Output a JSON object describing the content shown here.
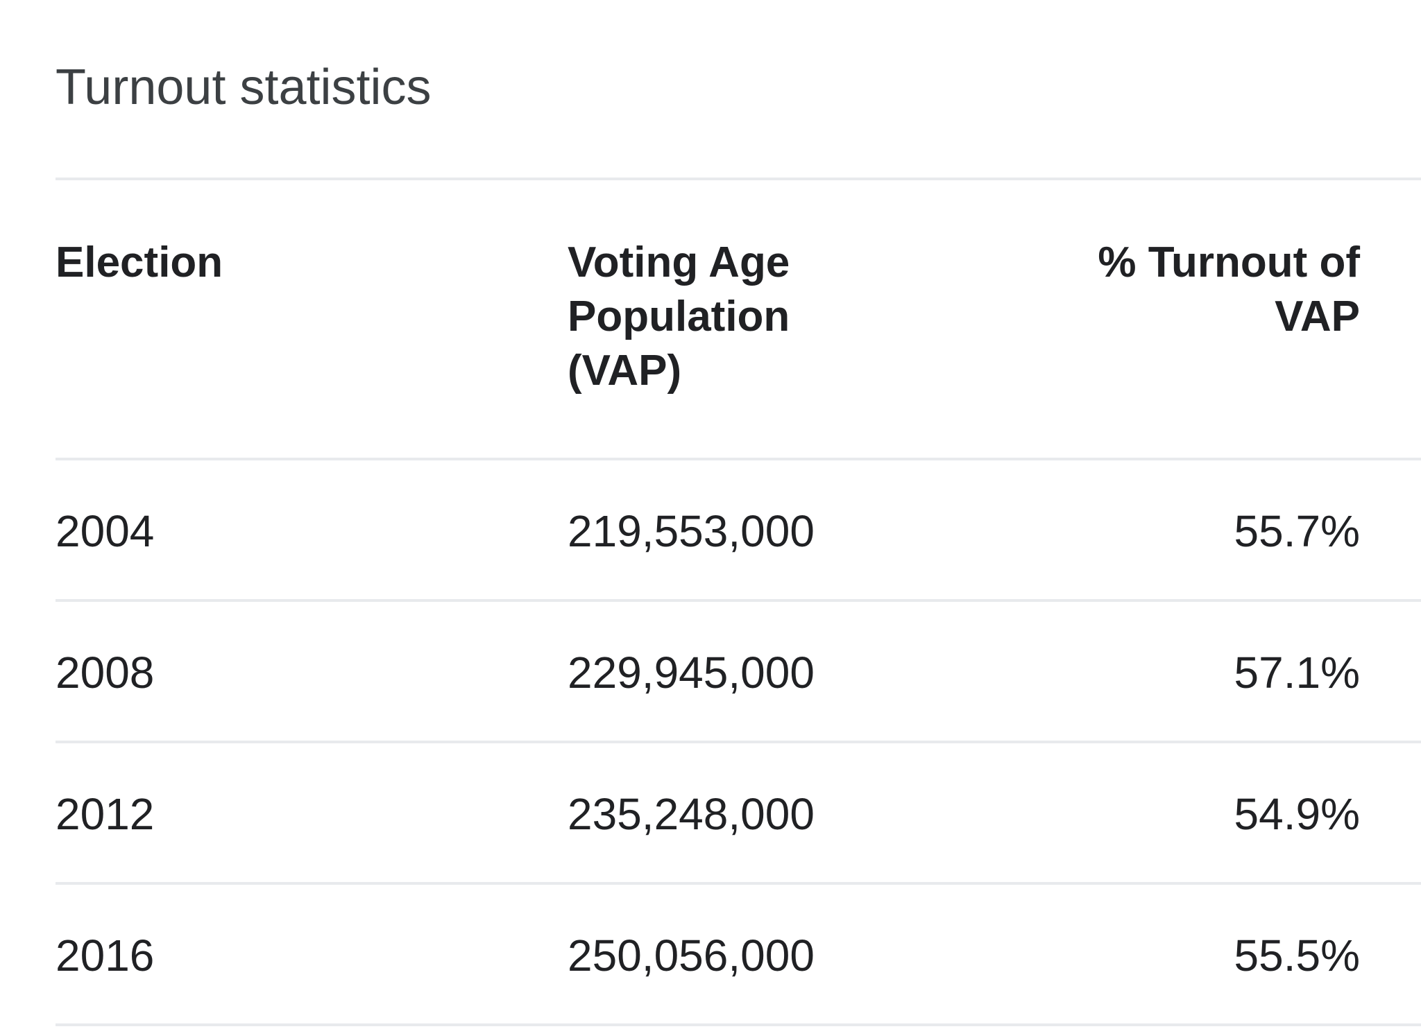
{
  "card": {
    "title": "Turnout statistics"
  },
  "table": {
    "columns": {
      "election": "Election",
      "vap": "Voting Age Population (VAP)",
      "turnout": "% Turnout of VAP"
    },
    "rows": [
      {
        "election": "2004",
        "vap": "219,553,000",
        "turnout": "55.7%"
      },
      {
        "election": "2008",
        "vap": "229,945,000",
        "turnout": "57.1%"
      },
      {
        "election": "2012",
        "vap": "235,248,000",
        "turnout": "54.9%"
      },
      {
        "election": "2016",
        "vap": "250,056,000",
        "turnout": "55.5%"
      }
    ]
  }
}
